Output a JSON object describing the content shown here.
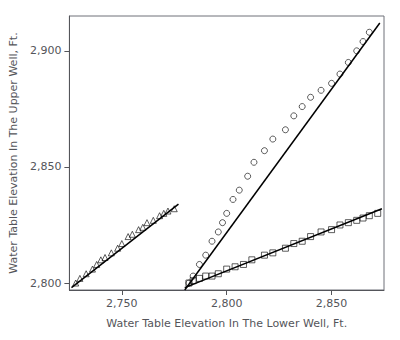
{
  "chart_data": {
    "type": "scatter",
    "xlabel": "Water Table Elevation In The Lower Well, Ft.",
    "ylabel": "Water Table Elevation In The Upper Well, Ft.",
    "xlim": [
      2725,
      2875
    ],
    "ylim": [
      2797,
      2915
    ],
    "xticks": [
      2750,
      2800,
      2850
    ],
    "yticks": [
      2800,
      2850,
      2900
    ],
    "grid": false,
    "series": [
      {
        "type": "scatter",
        "marker": "triangle",
        "color": "#000000",
        "x": [
          2728,
          2730,
          2733,
          2736,
          2738,
          2740,
          2742,
          2745,
          2748,
          2750,
          2753,
          2755,
          2758,
          2760,
          2762,
          2765,
          2768,
          2770,
          2772,
          2775
        ],
        "values": [
          2800,
          2802,
          2804,
          2806,
          2808,
          2810,
          2811,
          2813,
          2815,
          2817,
          2820,
          2821,
          2823,
          2824,
          2826,
          2827,
          2829,
          2830,
          2831,
          2832
        ]
      },
      {
        "type": "line",
        "color": "#000000",
        "x": [
          2726,
          2777
        ],
        "values": [
          2798,
          2834
        ]
      },
      {
        "type": "scatter",
        "marker": "circle",
        "color": "#000000",
        "x": [
          2782,
          2784,
          2787,
          2790,
          2793,
          2796,
          2798,
          2800,
          2803,
          2806,
          2810,
          2813,
          2818,
          2822,
          2828,
          2832,
          2836,
          2840,
          2845,
          2850,
          2854,
          2858,
          2862,
          2865,
          2868
        ],
        "values": [
          2800,
          2803,
          2808,
          2812,
          2818,
          2822,
          2826,
          2830,
          2836,
          2840,
          2846,
          2852,
          2857,
          2862,
          2866,
          2872,
          2876,
          2880,
          2883,
          2886,
          2890,
          2895,
          2900,
          2904,
          2908
        ]
      },
      {
        "type": "line",
        "color": "#000000",
        "x": [
          2780,
          2873
        ],
        "values": [
          2797,
          2912
        ]
      },
      {
        "type": "scatter",
        "marker": "square",
        "color": "#000000",
        "x": [
          2782,
          2784,
          2787,
          2790,
          2793,
          2796,
          2800,
          2804,
          2808,
          2812,
          2818,
          2822,
          2828,
          2832,
          2836,
          2840,
          2845,
          2850,
          2854,
          2858,
          2862,
          2865,
          2868,
          2872
        ],
        "values": [
          2800,
          2801,
          2802,
          2803,
          2803,
          2804,
          2806,
          2807,
          2808,
          2810,
          2812,
          2813,
          2815,
          2817,
          2818,
          2820,
          2822,
          2823,
          2825,
          2826,
          2827,
          2828,
          2829,
          2830
        ]
      },
      {
        "type": "line",
        "color": "#000000",
        "x": [
          2780,
          2874
        ],
        "values": [
          2798,
          2832
        ]
      }
    ]
  }
}
